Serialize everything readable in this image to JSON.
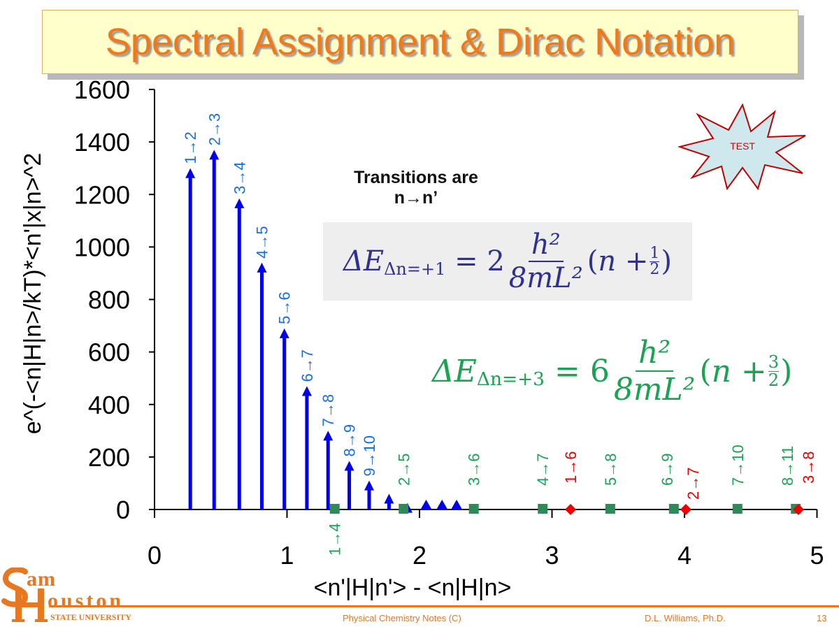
{
  "slide": {
    "title": "Spectral Assignment & Dirac Notation",
    "note_line1": "Transitions are",
    "note_line2": "n→n’",
    "badge": "TEST",
    "footer_center": "Physical Chemistry Notes (C)",
    "footer_author": "D.L. Williams, Ph.D.",
    "page_number": "13",
    "logo": {
      "line1": "am",
      "line2": "ouston",
      "line3": "STATE UNIVERSITY",
      "initial1": "S",
      "initial2": "H"
    },
    "equation1": {
      "lhs": "ΔE",
      "sub": "Δn=+1",
      "coef": "2",
      "num": "h²",
      "den": "8mL²",
      "n": "n +",
      "frac_num": "1",
      "frac_den": "2"
    },
    "equation2": {
      "lhs": "ΔE",
      "sub": "Δn=+3",
      "coef": "6",
      "num": "h²",
      "den": "8mL²",
      "n": "n +",
      "frac_num": "3",
      "frac_den": "2"
    }
  },
  "colors": {
    "blue": "#0000ee",
    "blue_label": "#1a6fe0",
    "green": "#2e8b57",
    "green_label": "#1aa352",
    "red": "#ee0000",
    "accent": "#e87722"
  },
  "chart_data": {
    "type": "scatter",
    "xlabel": "<n'|H|n'> - <n|H|n>",
    "ylabel": "e^(-<n|H|n>/kT)*<n'|x|n>^2",
    "xlim": [
      0,
      5
    ],
    "ylim": [
      0,
      1600
    ],
    "xticks": [
      "0",
      "1",
      "2",
      "3",
      "4",
      "5"
    ],
    "yticks": [
      "0",
      "200",
      "400",
      "600",
      "800",
      "1000",
      "1200",
      "1400",
      "1600"
    ],
    "grid": false,
    "series": [
      {
        "marker": "arrow-stem",
        "color": "#0000ee",
        "x": [
          0.27,
          0.45,
          0.64,
          0.81,
          0.98,
          1.15,
          1.31,
          1.47,
          1.62,
          1.77,
          1.91,
          2.05,
          2.17,
          2.28
        ],
        "y": [
          1300,
          1370,
          1185,
          940,
          690,
          470,
          300,
          185,
          110,
          60,
          25,
          12,
          6,
          3
        ],
        "labels": [
          "1→2",
          "2→3",
          "3→4",
          "4→5",
          "5→6",
          "6→7",
          "7→8",
          "8→9",
          "9→10",
          "",
          "",
          "",
          "",
          ""
        ]
      },
      {
        "marker": "square",
        "color": "#2e8b57",
        "x": [
          1.36,
          1.88,
          2.41,
          2.93,
          3.44,
          3.92,
          4.4,
          4.84
        ],
        "y": [
          0,
          0,
          0,
          0,
          0,
          0,
          0,
          0
        ],
        "labels": [
          "1→4",
          "2→5",
          "3→6",
          "4→7",
          "5→8",
          "6→9",
          "7→10",
          "8→11"
        ]
      },
      {
        "marker": "diamond",
        "color": "#ee0000",
        "x": [
          3.14,
          4.01,
          4.86
        ],
        "y": [
          0,
          0,
          0
        ],
        "labels": [
          "1→6",
          "2→7",
          "3→8"
        ]
      }
    ]
  }
}
